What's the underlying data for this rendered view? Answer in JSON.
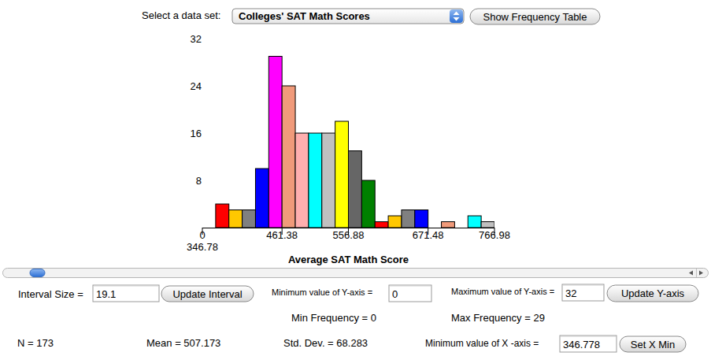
{
  "chart_data": {
    "type": "histogram",
    "x_label": "Average SAT Math Score",
    "bins": [
      346.78,
      365.88,
      384.98,
      404.08,
      423.18,
      442.28,
      461.38,
      480.48,
      499.58,
      518.68,
      537.78,
      556.88,
      575.98,
      595.08,
      614.18,
      633.28,
      652.38,
      671.48,
      690.58,
      709.68,
      728.78,
      747.88,
      766.98
    ],
    "values": [
      0,
      4,
      3,
      3,
      10,
      29,
      24,
      16,
      16,
      16,
      18,
      13,
      8,
      1,
      2,
      3,
      3,
      0,
      1,
      0,
      2,
      1
    ],
    "colors": [
      "#008000",
      "#ff0000",
      "#ffc800",
      "#808080",
      "#0000ff",
      "#ff00ff",
      "#f09a7a",
      "#ffafaf",
      "#00ffff",
      "#c0c0c0",
      "#ffff00",
      "#666666",
      "#008000",
      "#ff0000",
      "#ffc800",
      "#808080",
      "#0000ff",
      "#ff00ff",
      "#f09a7a",
      "#ffafaf",
      "#00ffff",
      "#c0c0c0"
    ],
    "xlim": [
      346.78,
      766.98
    ],
    "xticks": [
      346.78,
      461.38,
      556.88,
      671.48,
      766.98
    ],
    "ylim": [
      0,
      32
    ],
    "yticks": [
      0,
      8,
      16,
      24,
      32
    ]
  },
  "controls": {
    "dataset_label": "Select a data set:",
    "dataset": "Colleges' SAT Math Scores",
    "frequency_button": "Show Frequency Table",
    "interval_label": "Interval Size =",
    "interval": 19.1,
    "interval_button": "Update Interval",
    "ymin_label": "Minimum value of Y-axis =",
    "ymin": 0,
    "ymax_label": "Maximum value of Y-axis =",
    "ymax": 32,
    "ymax_button": "Update Y-axis",
    "xmin_label": "Minimum value of X -axis =",
    "xmin": 346.778,
    "xmin_button": "Set X Min"
  },
  "stats": {
    "min_frequency": {
      "label": "Min Frequency =",
      "value": 0
    },
    "max_frequency": {
      "label": "Max Frequency =",
      "value": 29
    },
    "n": {
      "label": "N =",
      "value": 173
    },
    "mean": {
      "label": "Mean =",
      "value": 507.173
    },
    "std_dev": {
      "label": "Std. Dev. =",
      "value": 68.283
    }
  }
}
